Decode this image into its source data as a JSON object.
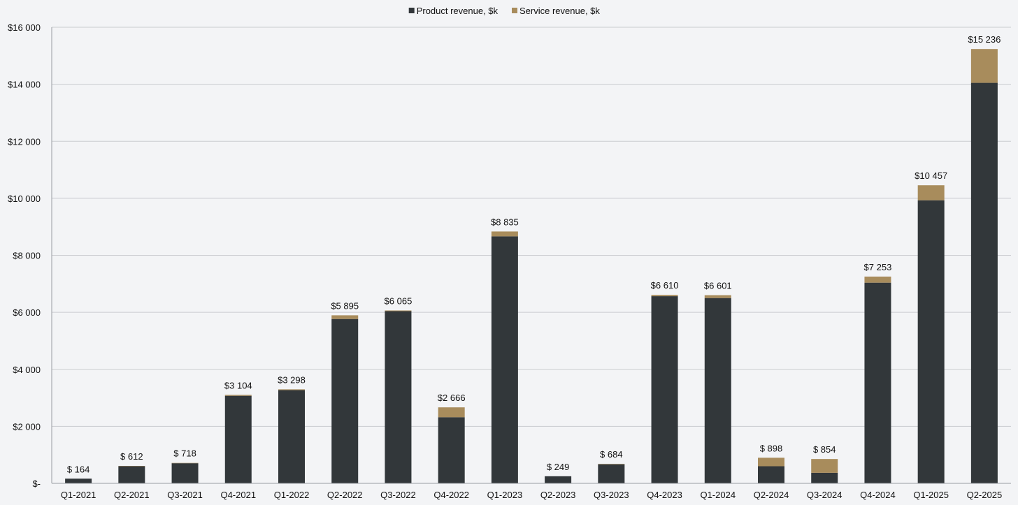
{
  "chart_data": {
    "type": "bar",
    "stacked": true,
    "title": "",
    "xlabel": "",
    "ylabel": "",
    "categories": [
      "Q1-2021",
      "Q2-2021",
      "Q3-2021",
      "Q4-2021",
      "Q1-2022",
      "Q2-2022",
      "Q3-2022",
      "Q4-2022",
      "Q1-2023",
      "Q2-2023",
      "Q3-2023",
      "Q4-2023",
      "Q1-2024",
      "Q2-2024",
      "Q3-2024",
      "Q4-2024",
      "Q1-2025",
      "Q2-2025"
    ],
    "series": [
      {
        "name": "Product revenue, $k",
        "color": "#32373a",
        "values": [
          164,
          600,
          706,
          3070,
          3270,
          5765,
          6040,
          2320,
          8665,
          249,
          670,
          6565,
          6500,
          600,
          370,
          7040,
          9930,
          14050
        ]
      },
      {
        "name": "Service revenue, $k",
        "color": "#a88c5c",
        "values": [
          0,
          12,
          12,
          34,
          28,
          130,
          25,
          346,
          170,
          0,
          14,
          45,
          101,
          298,
          484,
          213,
          527,
          1186
        ]
      }
    ],
    "totals": [
      164,
      612,
      718,
      3104,
      3298,
      5895,
      6065,
      2666,
      8835,
      249,
      684,
      6610,
      6601,
      898,
      854,
      7253,
      10457,
      15236
    ],
    "total_labels": [
      "$ 164",
      "$ 612",
      "$ 718",
      "$3 104",
      "$3 298",
      "$5 895",
      "$6 065",
      "$2 666",
      "$8 835",
      "$ 249",
      "$ 684",
      "$6 610",
      "$6 601",
      "$ 898",
      "$ 854",
      "$7 253",
      "$10 457",
      "$15 236"
    ],
    "ylim": [
      0,
      16000
    ],
    "y_ticks": [
      0,
      2000,
      4000,
      6000,
      8000,
      10000,
      12000,
      14000,
      16000
    ],
    "y_tick_labels": [
      "$-",
      "$2 000",
      "$4 000",
      "$6 000",
      "$8 000",
      "$10 000",
      "$12 000",
      "$14 000",
      "$16 000"
    ],
    "grid": true,
    "legend_position": "top-center"
  }
}
